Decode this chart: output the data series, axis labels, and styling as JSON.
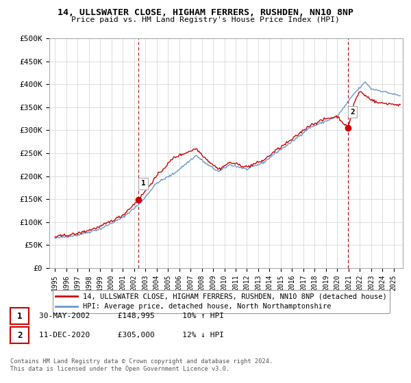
{
  "title1": "14, ULLSWATER CLOSE, HIGHAM FERRERS, RUSHDEN, NN10 8NP",
  "title2": "Price paid vs. HM Land Registry's House Price Index (HPI)",
  "ylim": [
    0,
    500000
  ],
  "yticks": [
    0,
    50000,
    100000,
    150000,
    200000,
    250000,
    300000,
    350000,
    400000,
    450000,
    500000
  ],
  "ytick_labels": [
    "£0",
    "£50K",
    "£100K",
    "£150K",
    "£200K",
    "£250K",
    "£300K",
    "£350K",
    "£400K",
    "£450K",
    "£500K"
  ],
  "xtick_years": [
    1995,
    1996,
    1997,
    1998,
    1999,
    2000,
    2001,
    2002,
    2003,
    2004,
    2005,
    2006,
    2007,
    2008,
    2009,
    2010,
    2011,
    2012,
    2013,
    2014,
    2015,
    2016,
    2017,
    2018,
    2019,
    2020,
    2021,
    2022,
    2023,
    2024,
    2025
  ],
  "sale1_x": 2002.41,
  "sale1_y": 148995,
  "sale1_label": "1",
  "sale2_x": 2020.95,
  "sale2_y": 305000,
  "sale2_label": "2",
  "line_color_property": "#cc0000",
  "line_color_hpi": "#6699cc",
  "background_color": "#ffffff",
  "grid_color": "#dddddd",
  "legend_label_property": "14, ULLSWATER CLOSE, HIGHAM FERRERS, RUSHDEN, NN10 8NP (detached house)",
  "legend_label_hpi": "HPI: Average price, detached house, North Northamptonshire",
  "annotation1_label": "1",
  "annotation1_date": "30-MAY-2002",
  "annotation1_price": "£148,995",
  "annotation1_hpi": "10% ↑ HPI",
  "annotation2_label": "2",
  "annotation2_date": "11-DEC-2020",
  "annotation2_price": "£305,000",
  "annotation2_hpi": "12% ↓ HPI",
  "footer1": "Contains HM Land Registry data © Crown copyright and database right 2024.",
  "footer2": "This data is licensed under the Open Government Licence v3.0."
}
